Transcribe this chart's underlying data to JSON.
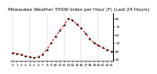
{
  "title": "Milwaukee Weather THSW Index per Hour (F) (Last 24 Hours)",
  "hours": [
    0,
    1,
    2,
    3,
    4,
    5,
    6,
    7,
    8,
    9,
    10,
    11,
    12,
    13,
    14,
    15,
    16,
    17,
    18,
    19,
    20,
    21,
    22,
    23
  ],
  "values": [
    38,
    37,
    36,
    34,
    33,
    32,
    33,
    36,
    42,
    50,
    58,
    65,
    72,
    80,
    78,
    73,
    68,
    62,
    55,
    50,
    47,
    44,
    42,
    40
  ],
  "line_color": "#ff0000",
  "marker_color": "#222222",
  "bg_color": "#ffffff",
  "plot_bg": "#ffffff",
  "grid_color": "#888888",
  "ylim_min": 28,
  "ylim_max": 86,
  "title_fontsize": 4.2,
  "tick_fontsize": 3.2,
  "right_axis_values": [
    80,
    70,
    60,
    50,
    40,
    30
  ],
  "grid_x_positions": [
    0,
    4,
    8,
    12,
    16,
    20
  ],
  "xlabel_hours": [
    "0",
    "1",
    "2",
    "3",
    "4",
    "5",
    "6",
    "7",
    "8",
    "9",
    "10",
    "11",
    "12",
    "13",
    "14",
    "15",
    "16",
    "17",
    "18",
    "19",
    "20",
    "21",
    "22",
    "23"
  ]
}
